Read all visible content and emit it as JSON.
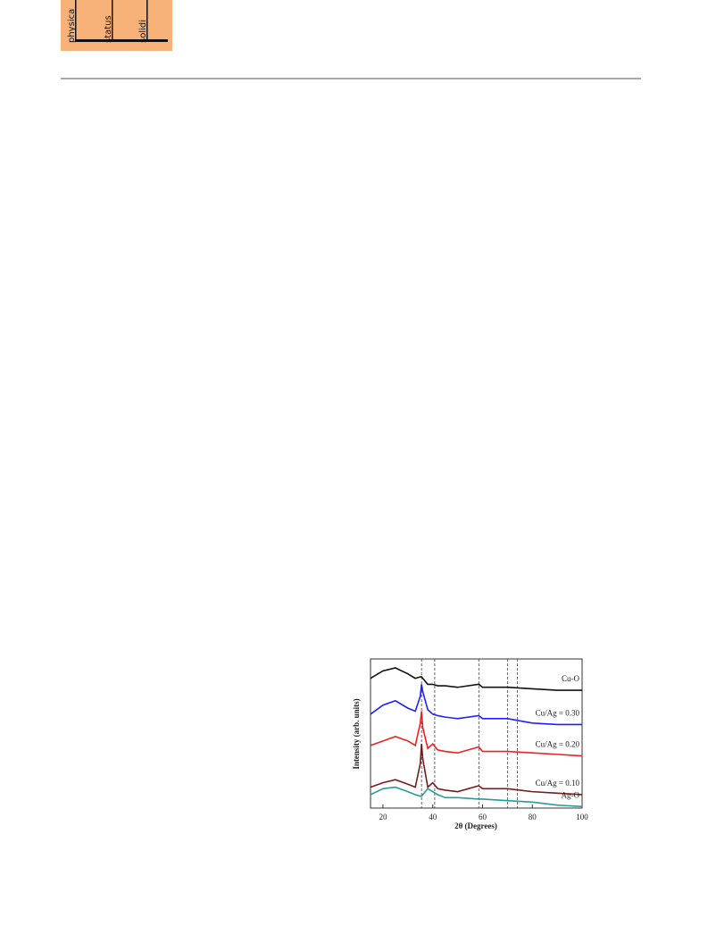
{
  "header": {
    "logo": [
      "physica",
      "status",
      "solidi"
    ]
  },
  "chart_data": {
    "type": "line",
    "x_label": "2θ (Degrees)",
    "y_label": "Intensity (arb. units)",
    "x": [
      15,
      20,
      25,
      30,
      33,
      35,
      35.5,
      36,
      38,
      40,
      42,
      45,
      50,
      58.5,
      60,
      70,
      80,
      90,
      100
    ],
    "series": [
      {
        "name": "Cu-O",
        "color": "#111111",
        "values": [
          87,
          92,
          94,
          90,
          87,
          88,
          88,
          87,
          83,
          83,
          82,
          82,
          81,
          83,
          81,
          81,
          80,
          79,
          79
        ]
      },
      {
        "name": "Cu/Ag = 0.30",
        "color": "#1f1fff",
        "values": [
          63,
          69,
          72,
          67,
          65,
          75,
          83,
          78,
          66,
          63,
          62,
          61,
          60,
          62,
          60,
          60,
          57,
          56,
          56
        ]
      },
      {
        "name": "Cu/Ag = 0.20",
        "color": "#ee2222",
        "values": [
          42,
          45,
          48,
          45,
          42,
          57,
          65,
          54,
          40,
          43,
          39,
          38,
          37,
          41,
          38,
          38,
          37,
          36,
          35
        ]
      },
      {
        "name": "Cu/Ag = 0.10",
        "color": "#7a1a1a",
        "values": [
          14,
          17,
          19,
          16,
          14,
          30,
          43,
          33,
          14,
          17,
          13,
          12,
          11,
          15,
          13,
          13,
          11,
          10,
          9
        ]
      },
      {
        "name": "Ag-O",
        "color": "#2a9a9a",
        "values": [
          9,
          13,
          14,
          11,
          9,
          8,
          8,
          9,
          13,
          11,
          9,
          7,
          7,
          6,
          6,
          5,
          4,
          2,
          1
        ]
      }
    ],
    "reference_lines": [
      35.5,
      40.8,
      58.5,
      70,
      74
    ],
    "xlim": [
      15,
      100
    ],
    "xticks": [
      20,
      40,
      60,
      80,
      100
    ],
    "ylim": [
      0,
      100
    ]
  }
}
